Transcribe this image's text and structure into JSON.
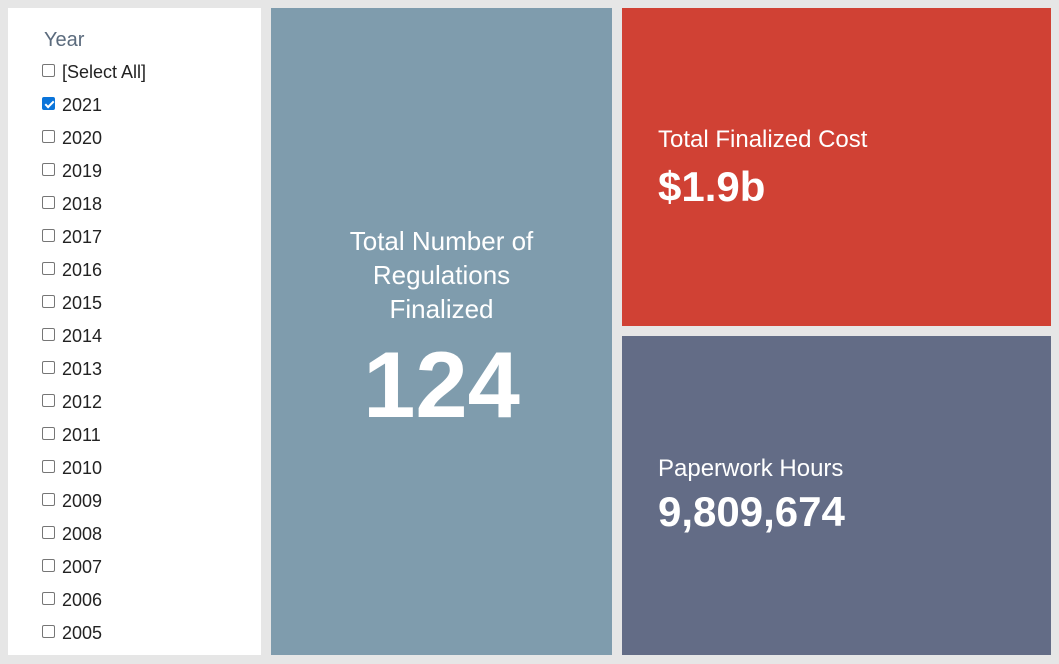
{
  "filter": {
    "title": "Year",
    "items": [
      {
        "label": "[Select All]",
        "checked": false
      },
      {
        "label": "2021",
        "checked": true
      },
      {
        "label": "2020",
        "checked": false
      },
      {
        "label": "2019",
        "checked": false
      },
      {
        "label": "2018",
        "checked": false
      },
      {
        "label": "2017",
        "checked": false
      },
      {
        "label": "2016",
        "checked": false
      },
      {
        "label": "2015",
        "checked": false
      },
      {
        "label": "2014",
        "checked": false
      },
      {
        "label": "2013",
        "checked": false
      },
      {
        "label": "2012",
        "checked": false
      },
      {
        "label": "2011",
        "checked": false
      },
      {
        "label": "2010",
        "checked": false
      },
      {
        "label": "2009",
        "checked": false
      },
      {
        "label": "2008",
        "checked": false
      },
      {
        "label": "2007",
        "checked": false
      },
      {
        "label": "2006",
        "checked": false
      },
      {
        "label": "2005",
        "checked": false
      }
    ]
  },
  "cards": {
    "regulations": {
      "label": "Total Number of Regulations Finalized",
      "value": "124",
      "color": "#7f9cad"
    },
    "cost": {
      "label": "Total Finalized Cost",
      "value": "$1.9b",
      "color": "#d04134"
    },
    "hours": {
      "label": "Paperwork Hours",
      "value": "9,809,674",
      "color": "#636c86"
    }
  },
  "colors": {
    "background": "#e6e6e6",
    "checkbox_checked": "#0a74da",
    "filter_title": "#5b6b7d"
  }
}
